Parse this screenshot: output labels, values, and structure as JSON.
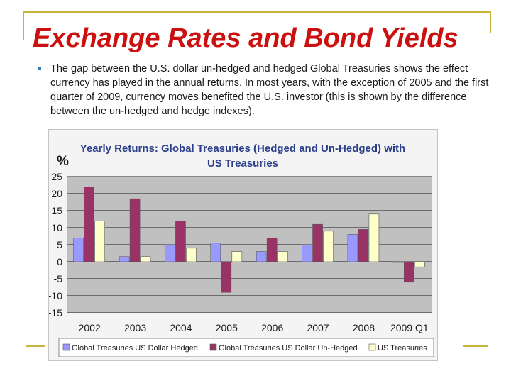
{
  "slide": {
    "title": "Exchange Rates and Bond Yields",
    "body": "The gap between the U.S. dollar un-hedged and hedged Global Treasuries shows the effect currency has played in the annual returns. In most years, with the exception of 2005 and the first quarter of 2009, currency moves benefited the U.S. investor (this is shown by the difference between the un-hedged and hedge indexes)."
  },
  "colors": {
    "title": "#cc1010",
    "accent": "#c8b43a",
    "bullet": "#2f7fbf",
    "chart_title": "#2b3f8a"
  },
  "chart_data": {
    "type": "bar",
    "title": "Yearly Returns: Global Treasuries (Hedged and Un-Hedged) with",
    "subtitle": "US Treasuries",
    "ylabel": "%",
    "ylim": [
      -15,
      25
    ],
    "yticks": [
      25,
      20,
      15,
      10,
      5,
      0,
      -5,
      -10,
      -15
    ],
    "grid": true,
    "legend_position": "bottom",
    "categories": [
      "2002",
      "2003",
      "2004",
      "2005",
      "2006",
      "2007",
      "2008",
      "2009 Q1"
    ],
    "series": [
      {
        "name": "Global Treasuries US Dollar Hedged",
        "color": "#9999ff",
        "values": [
          7,
          1.5,
          5,
          5.5,
          3,
          5,
          8,
          0
        ]
      },
      {
        "name": "Global Treasuries US Dollar Un-Hedged",
        "color": "#993366",
        "values": [
          22,
          18.5,
          12,
          -9,
          7,
          11,
          9.5,
          -6
        ]
      },
      {
        "name": "US Treasuries",
        "color": "#ffffcc",
        "values": [
          12,
          1.5,
          4,
          3,
          3,
          9,
          14,
          -1.5
        ]
      }
    ]
  }
}
